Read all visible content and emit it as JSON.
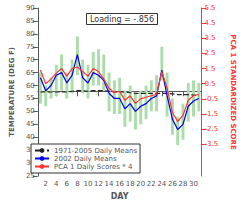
{
  "chart_data": {
    "type": "bar",
    "title": "Loading = -.856",
    "x_label": "DAY",
    "y_label": "TEMPERATURE (DEG F)",
    "y2_label": "PCA 1 STANDARDIZED SCORE",
    "x": [
      1,
      2,
      3,
      4,
      5,
      6,
      7,
      8,
      9,
      10,
      11,
      12,
      13,
      14,
      15,
      16,
      17,
      18,
      19,
      20,
      21,
      22,
      23,
      24,
      25,
      26,
      27,
      28,
      29,
      30,
      31
    ],
    "xlim": [
      0.5,
      31.5
    ],
    "xticks": [
      2,
      4,
      6,
      8,
      10,
      12,
      14,
      16,
      18,
      20,
      22,
      24,
      26,
      28,
      30
    ],
    "ylim": [
      25,
      90
    ],
    "yticks": [
      25,
      30,
      35,
      40,
      45,
      50,
      55,
      60,
      65,
      70,
      75,
      80,
      85,
      90
    ],
    "y2lim": [
      -5.6,
      5.5
    ],
    "y2ticks": [
      -3.5,
      -2.5,
      -1.5,
      -0.5,
      0.5,
      1.5,
      2.5,
      3.5,
      4.5,
      5.5
    ],
    "grid": false,
    "legend": "lower left",
    "series": [
      {
        "type": "bar",
        "color": "#aaddaa",
        "low": [
          53,
          52,
          55,
          56,
          58,
          55,
          57,
          64,
          57,
          55,
          60,
          60,
          58,
          50,
          49,
          49,
          44,
          46,
          43,
          45,
          47,
          50,
          50,
          62,
          48,
          41,
          37,
          39,
          46,
          48,
          50
        ],
        "high": [
          65,
          60,
          63,
          68,
          72,
          65,
          70,
          79,
          70,
          68,
          73,
          74,
          72,
          65,
          62,
          63,
          58,
          60,
          57,
          58,
          60,
          62,
          64,
          75,
          65,
          55,
          48,
          53,
          61,
          62,
          61
        ]
      },
      {
        "name": "1971-2005 Daily Means",
        "type": "line",
        "color": "#222222",
        "line_style": "dashed",
        "values": [
          57.5,
          57.5,
          57.5,
          57.5,
          57.5,
          57.5,
          57.8,
          58.0,
          58.0,
          57.8,
          58.0,
          58.0,
          58.0,
          57.8,
          57.5,
          57.5,
          57.5,
          57.2,
          57.0,
          57.0,
          57.0,
          57.0,
          57.0,
          57.0,
          57.0,
          56.8,
          56.5,
          56.5,
          56.5,
          56.3,
          56.0
        ]
      },
      {
        "name": "2002 Daily Means",
        "type": "line",
        "color": "#0000EE",
        "values": [
          63,
          58,
          60,
          64,
          65,
          61,
          64,
          72,
          63,
          61,
          65,
          64,
          62,
          57,
          55,
          55,
          51,
          53,
          50,
          52,
          53,
          55,
          56,
          66,
          56,
          47,
          43,
          45,
          52,
          54,
          55
        ]
      },
      {
        "name": "PCA 1 Daily Scores * 4",
        "type": "line",
        "color": "#FF3333",
        "axis": "y2",
        "values": [
          1.4,
          0.5,
          0.8,
          1.2,
          1.5,
          1.0,
          1.5,
          1.6,
          1.3,
          1.0,
          1.5,
          1.3,
          0.8,
          0.2,
          -0.1,
          0.0,
          -0.6,
          -0.3,
          -0.8,
          -0.5,
          -0.4,
          -0.3,
          -0.2,
          1.3,
          0.2,
          -1.4,
          -2.0,
          -1.6,
          -0.6,
          -0.3,
          -0.2
        ]
      }
    ]
  }
}
